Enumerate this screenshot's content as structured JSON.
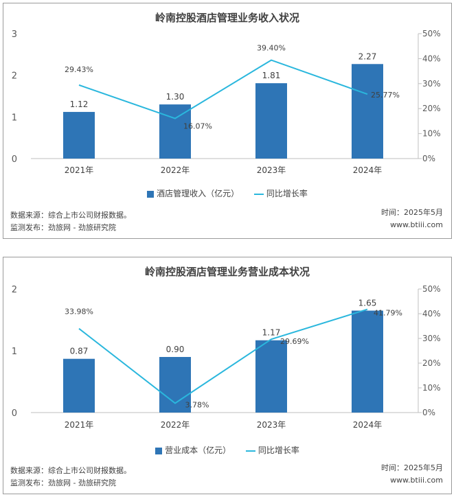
{
  "chart_data": [
    {
      "type": "bar",
      "title": "岭南控股酒店管理业务收入状况",
      "categories": [
        "2021年",
        "2022年",
        "2023年",
        "2024年"
      ],
      "series": [
        {
          "name": "酒店管理收入（亿元）",
          "type": "bar",
          "axis": "left",
          "values": [
            1.12,
            1.3,
            1.81,
            2.27
          ],
          "labels": [
            "1.12",
            "1.30",
            "1.81",
            "2.27"
          ]
        },
        {
          "name": "同比增长率",
          "type": "line",
          "axis": "right",
          "values": [
            29.43,
            16.07,
            39.4,
            25.77
          ],
          "labels": [
            "29.43%",
            "16.07%",
            "39.40%",
            "25.77%"
          ]
        }
      ],
      "ylim": [
        0,
        3
      ],
      "yticks": [
        "0",
        "1",
        "2",
        "3"
      ],
      "y2lim": [
        0,
        50
      ],
      "y2ticks": [
        "0%",
        "10%",
        "20%",
        "30%",
        "40%",
        "50%"
      ],
      "grid": false,
      "legend": "bottom",
      "colors": {
        "bar": "#2e75b6",
        "line": "#2ab7dd"
      }
    },
    {
      "type": "bar",
      "title": "岭南控股酒店管理业务营业成本状况",
      "categories": [
        "2021年",
        "2022年",
        "2023年",
        "2024年"
      ],
      "series": [
        {
          "name": "营业成本（亿元）",
          "type": "bar",
          "axis": "left",
          "values": [
            0.87,
            0.9,
            1.17,
            1.65
          ],
          "labels": [
            "0.87",
            "0.90",
            "1.17",
            "1.65"
          ]
        },
        {
          "name": "同比增长率",
          "type": "line",
          "axis": "right",
          "values": [
            33.98,
            3.78,
            29.69,
            41.79
          ],
          "labels": [
            "33.98%",
            "3.78%",
            "29.69%",
            "41.79%"
          ]
        }
      ],
      "ylim": [
        0,
        2
      ],
      "yticks": [
        "0",
        "1",
        "2"
      ],
      "y2lim": [
        0,
        50
      ],
      "y2ticks": [
        "0%",
        "10%",
        "20%",
        "30%",
        "40%",
        "50%"
      ],
      "grid": false,
      "legend": "bottom",
      "colors": {
        "bar": "#2e75b6",
        "line": "#2ab7dd"
      }
    }
  ],
  "footer": [
    {
      "source": "数据来源：综合上市公司财报数据。",
      "publisher": "监测发布：劲旅网 - 劲旅研究院",
      "time": "时间：2025年5月",
      "site": "www.btiii.com"
    },
    {
      "source": "数据来源：综合上市公司财报数据。",
      "publisher": "监测发布：劲旅网 - 劲旅研究院",
      "time": "时间：2025年5月",
      "site": "www.btiii.com"
    }
  ]
}
